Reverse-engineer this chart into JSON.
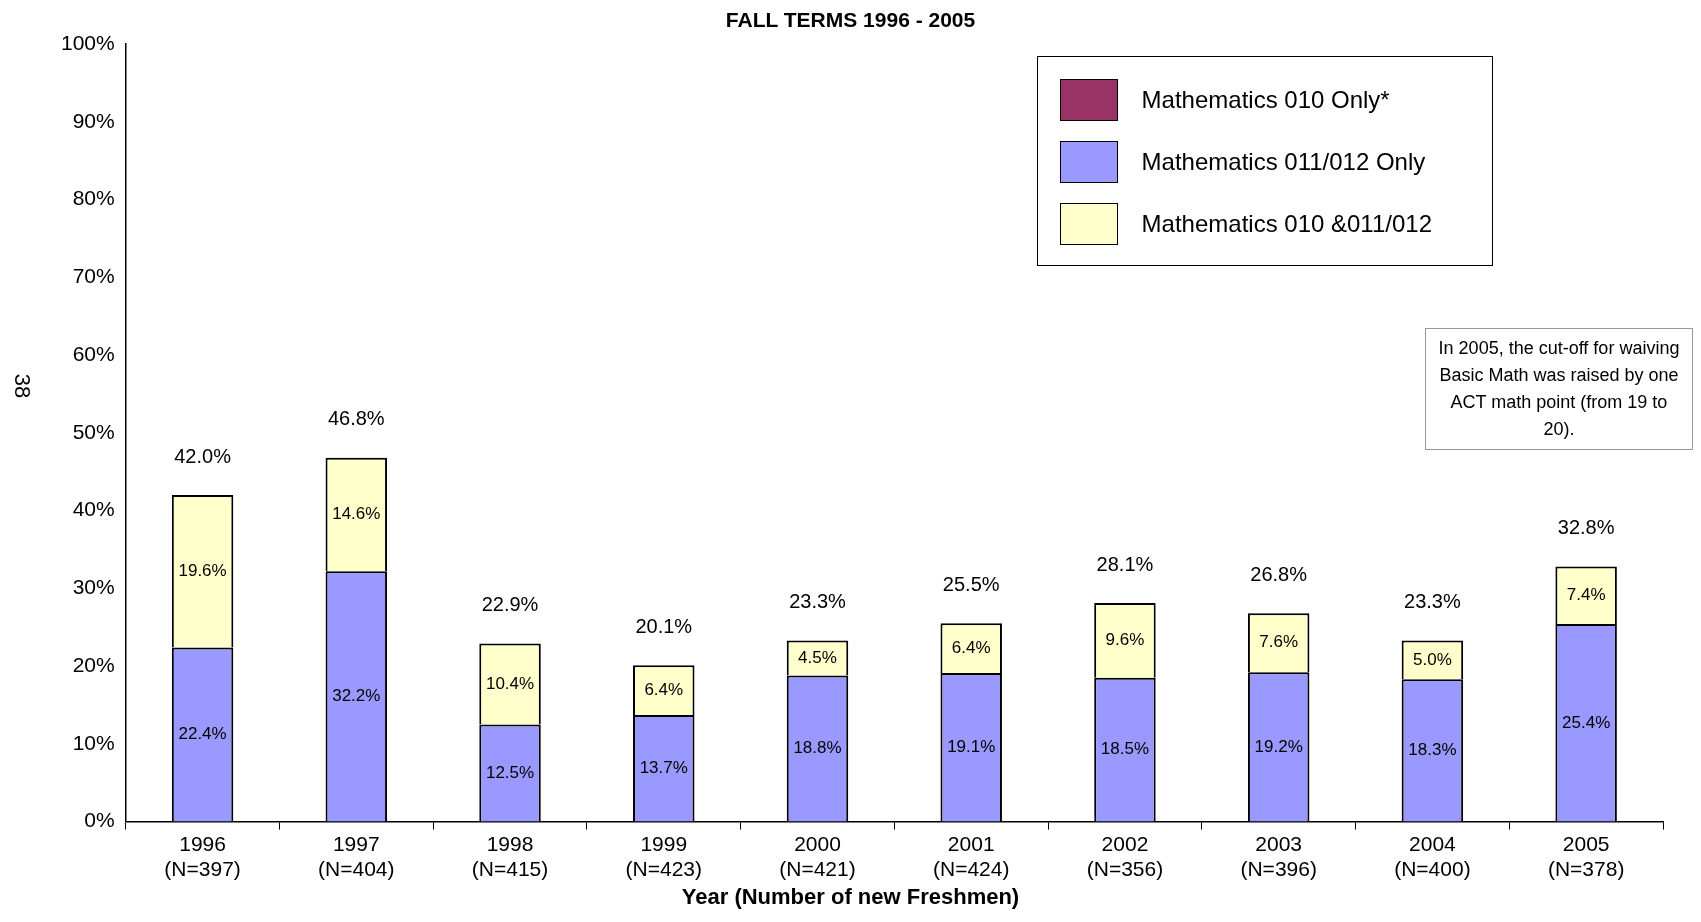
{
  "chart_data": {
    "type": "bar",
    "title": "FALL TERMS 1996 - 2005",
    "xlabel": "Year (Number of new Freshmen)",
    "categories": [
      "1996\n(N=397)",
      "1997\n(N=404)",
      "1998\n(N=415)",
      "1999\n(N=423)",
      "2000\n(N=421)",
      "2001\n(N=424)",
      "2002\n(N=356)",
      "2003\n(N=396)",
      "2004\n(N=400)",
      "2005\n(N=378)"
    ],
    "stacked": true,
    "series": [
      {
        "name": "Mathematics 010 Only*",
        "color": "#993366",
        "values": [
          null,
          0,
          null,
          0,
          null,
          0,
          0,
          0,
          0,
          0
        ],
        "value_labels": [
          null,
          null,
          null,
          null,
          null,
          null,
          null,
          null,
          null,
          null
        ]
      },
      {
        "name": "Mathematics 011/012 Only",
        "color": "#9999ff",
        "values": [
          22.4,
          32.2,
          12.5,
          13.7,
          18.8,
          19.1,
          18.5,
          19.2,
          18.3,
          25.4
        ],
        "value_labels": [
          "22.4%",
          "32.2%",
          "12.5%",
          "13.7%",
          "18.8%",
          "19.1%",
          "18.5%",
          "19.2%",
          "18.3%",
          "25.4%"
        ]
      },
      {
        "name": "Mathematics 010 &011/012",
        "color": "#ffffcc",
        "values": [
          19.6,
          14.6,
          10.4,
          6.4,
          4.5,
          6.4,
          9.6,
          7.6,
          5.0,
          7.4
        ],
        "value_labels": [
          "19.6%",
          "14.6%",
          "10.4%",
          "6.4%",
          "4.5%",
          "6.4%",
          "9.6%",
          "7.6%",
          "5.0%",
          "7.4%"
        ]
      }
    ],
    "totals": [
      "42.0%",
      "46.8%",
      "22.9%",
      "20.1%",
      "23.3%",
      "25.5%",
      "28.1%",
      "26.8%",
      "23.3%",
      "32.8%"
    ],
    "ylim": [
      0,
      100
    ],
    "yticks": [
      {
        "value": 0,
        "label": "0%"
      },
      {
        "value": 10,
        "label": "10%"
      },
      {
        "value": 20,
        "label": "20%"
      },
      {
        "value": 30,
        "label": "30%"
      },
      {
        "value": 40,
        "label": "40%"
      },
      {
        "value": 50,
        "label": "50%"
      },
      {
        "value": 60,
        "label": "60%"
      },
      {
        "value": 70,
        "label": "70%"
      },
      {
        "value": 80,
        "label": "80%"
      },
      {
        "value": 90,
        "label": "90%"
      },
      {
        "value": 100,
        "label": "100%"
      }
    ],
    "grid": false,
    "legend": "top right",
    "annotations": [
      "38",
      "In 2005, the cut-off for waiving Basic Math was raised by one ACT math point (from 19 to 20)."
    ]
  }
}
